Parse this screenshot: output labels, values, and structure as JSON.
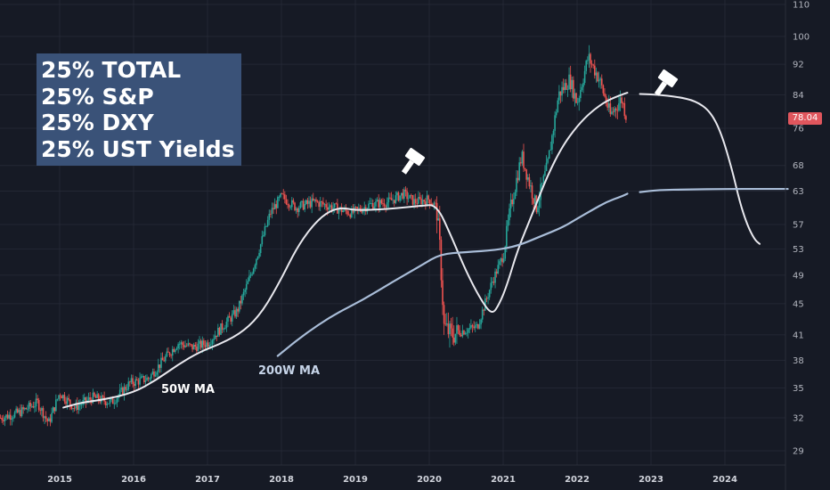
{
  "legend": {
    "lines": [
      "25% TOTAL",
      "25% S&P",
      "25% DXY",
      "25% UST Yields"
    ]
  },
  "price_tag": {
    "value": "78.04",
    "color": "#e0565d"
  },
  "annotations": {
    "ma50_label": "50W MA",
    "ma200_label": "200W MA",
    "gavel_icon": "gavel-icon"
  },
  "colors": {
    "background": "#161a25",
    "grid": "#232734",
    "candle_up": "#26a69a",
    "candle_down": "#ef5350",
    "ma50": "#e8e8ee",
    "ma200": "#a9bdd8",
    "legend_bg": "#3a5278"
  },
  "chart_data": {
    "type": "line",
    "title": "",
    "xlabel": "",
    "ylabel": "",
    "y_scale": "log",
    "y_ticks": [
      110,
      100,
      92,
      84,
      76,
      68,
      63,
      57,
      53,
      49,
      45,
      41,
      38,
      35,
      32,
      29
    ],
    "x_ticks": [
      "2015",
      "2016",
      "2017",
      "2018",
      "2019",
      "2020",
      "2021",
      "2022",
      "2023",
      "2024"
    ],
    "ylim": [
      27.5,
      112
    ],
    "xlim": [
      2014.2,
      2024.85
    ],
    "grid": true,
    "series": [
      {
        "name": "price",
        "style": "candles",
        "x": [
          2014.2,
          2014.45,
          2014.7,
          2014.85,
          2015.0,
          2015.2,
          2015.45,
          2015.7,
          2015.95,
          2016.2,
          2016.4,
          2016.6,
          2016.8,
          2017.0,
          2017.2,
          2017.4,
          2017.55,
          2017.7,
          2017.85,
          2018.0,
          2018.2,
          2018.45,
          2018.7,
          2018.95,
          2019.2,
          2019.45,
          2019.65,
          2019.8,
          2020.0,
          2020.1,
          2020.15,
          2020.2,
          2020.3,
          2020.45,
          2020.65,
          2020.85,
          2021.0,
          2021.1,
          2021.25,
          2021.45,
          2021.6,
          2021.75,
          2021.9,
          2022.0,
          2022.15,
          2022.3,
          2022.45,
          2022.6,
          2022.68
        ],
        "values": [
          32,
          32.5,
          33.5,
          31.5,
          34.5,
          33,
          34,
          33.5,
          35.5,
          36,
          38,
          40,
          39.5,
          40,
          42,
          44,
          48,
          53,
          59,
          62,
          60,
          61,
          60,
          59,
          60.5,
          61,
          62.5,
          61,
          61.5,
          60,
          52,
          42,
          41,
          41.5,
          42,
          48,
          52,
          60,
          70,
          60,
          68,
          84,
          88,
          82,
          94,
          88,
          79,
          83,
          78
        ]
      },
      {
        "name": "50W MA",
        "x": [
          2015.05,
          2015.3,
          2015.6,
          2016.0,
          2016.3,
          2016.6,
          2016.9,
          2017.2,
          2017.5,
          2017.75,
          2018.0,
          2018.2,
          2018.4,
          2018.6,
          2018.8,
          2019.0,
          2019.3,
          2019.6,
          2019.9,
          2020.1,
          2020.3,
          2020.5,
          2020.7,
          2020.85,
          2020.95,
          2021.05,
          2021.2,
          2021.4,
          2021.6,
          2021.8,
          2022.0,
          2022.2,
          2022.4,
          2022.6,
          2022.68
        ],
        "values": [
          33,
          33.5,
          33.8,
          34.5,
          35.8,
          37.5,
          39,
          40,
          41.5,
          44,
          48.5,
          53,
          56.5,
          59,
          60,
          59.5,
          59.6,
          59.9,
          60.3,
          60.5,
          55,
          49.5,
          45.5,
          43.5,
          45,
          47.5,
          53,
          59,
          66,
          72,
          76.5,
          80,
          82.5,
          84,
          84.5
        ],
        "color": "#e8e8ee"
      },
      {
        "name": "50W MA projection",
        "x": [
          2022.85,
          2023.1,
          2023.35,
          2023.6,
          2023.8,
          2023.95,
          2024.1,
          2024.2,
          2024.3,
          2024.4,
          2024.47
        ],
        "values": [
          84.2,
          84,
          83.5,
          82.5,
          80,
          75,
          67,
          61,
          57,
          54.5,
          53.8
        ],
        "color": "#e8e8ee"
      },
      {
        "name": "200W MA",
        "x": [
          2017.95,
          2018.3,
          2018.7,
          2019.1,
          2019.5,
          2019.9,
          2020.15,
          2020.5,
          2020.9,
          2021.2,
          2021.5,
          2021.8,
          2022.0,
          2022.2,
          2022.4,
          2022.6,
          2022.68
        ],
        "values": [
          38.5,
          41,
          43.5,
          45.5,
          48,
          50.5,
          52.2,
          52.5,
          52.8,
          53.5,
          55,
          56.5,
          58,
          59.5,
          61,
          62,
          62.5
        ],
        "color": "#a9bdd8"
      },
      {
        "name": "200W MA projection",
        "x": [
          2022.85,
          2023.1,
          2023.5,
          2024.0,
          2024.5,
          2024.85
        ],
        "values": [
          62.8,
          63.2,
          63.3,
          63.4,
          63.4,
          63.4
        ],
        "color": "#a9bdd8"
      }
    ]
  }
}
